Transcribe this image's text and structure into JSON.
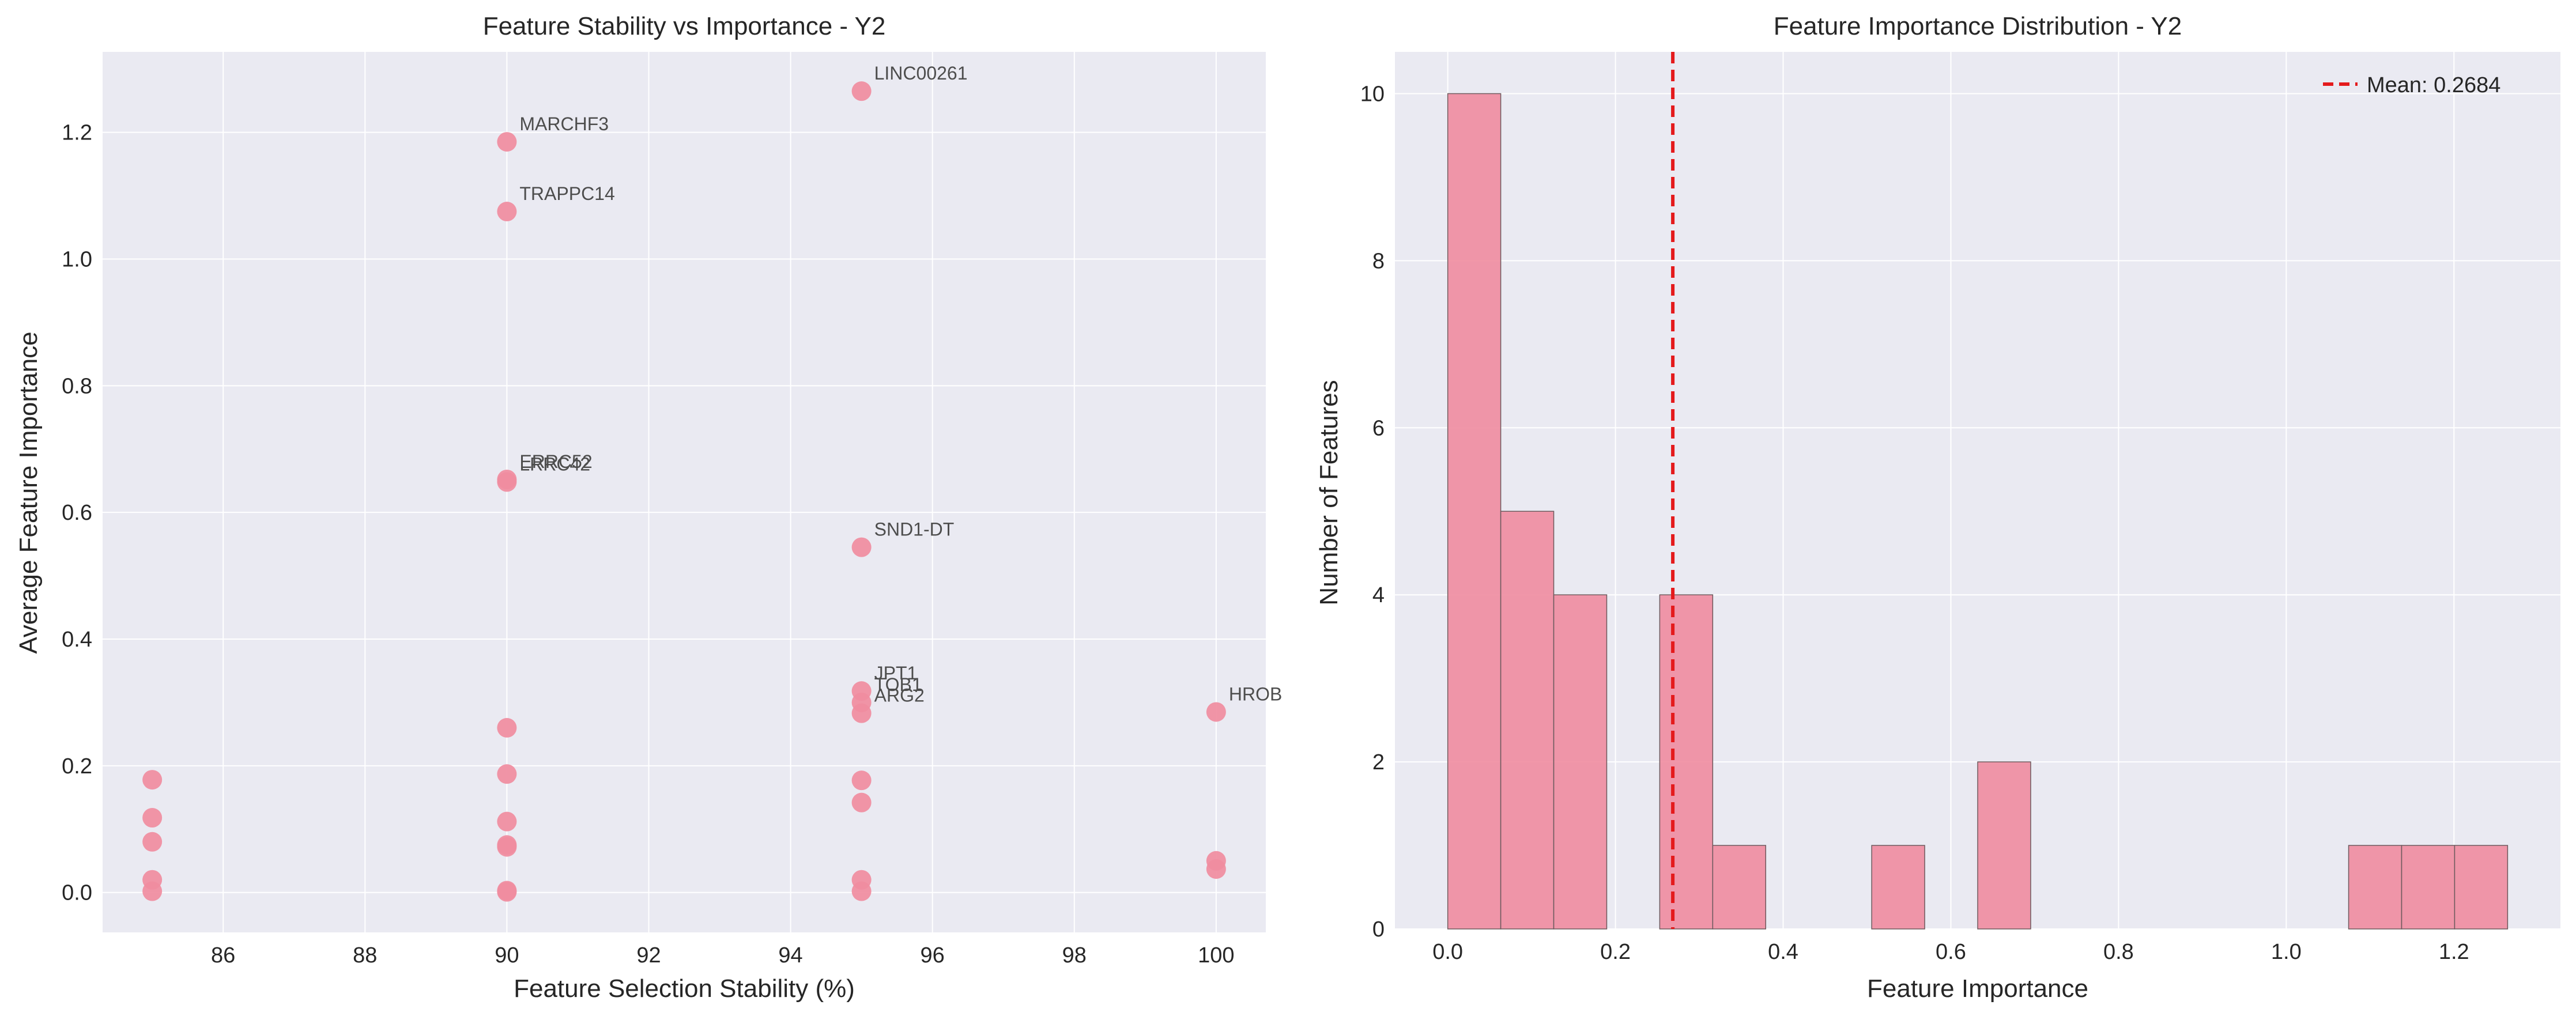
{
  "colors": {
    "axes_bg": "#eaeaf2",
    "grid": "#ffffff",
    "point": "#f08ca0",
    "bar": "#f08ca0",
    "bar_edge": "#6e5a5e",
    "mean_line": "#e41a1c",
    "text": "#262626",
    "annotation": "#4d4d4d"
  },
  "chart_data": [
    {
      "type": "scatter",
      "title": "Feature Stability vs Importance - Y2",
      "xlabel": "Feature Selection Stability (%)",
      "ylabel": "Average Feature Importance",
      "xlim": [
        84.3,
        100.7
      ],
      "ylim": [
        -0.063,
        1.327
      ],
      "xticks": [
        86,
        88,
        90,
        92,
        94,
        96,
        98,
        100
      ],
      "yticks": [
        0.0,
        0.2,
        0.4,
        0.6,
        0.8,
        1.0,
        1.2
      ],
      "xtick_labels": [
        "86",
        "88",
        "90",
        "92",
        "94",
        "96",
        "98",
        "100"
      ],
      "ytick_labels": [
        "0.0",
        "0.2",
        "0.4",
        "0.6",
        "0.8",
        "1.0",
        "1.2"
      ],
      "grid": true,
      "points": [
        {
          "x": 95,
          "y": 1.265,
          "label": "LINC00261"
        },
        {
          "x": 90,
          "y": 1.185,
          "label": "MARCHF3"
        },
        {
          "x": 90,
          "y": 1.075,
          "label": "TRAPPC14"
        },
        {
          "x": 90,
          "y": 0.652,
          "label": "ERRC52"
        },
        {
          "x": 90,
          "y": 0.648,
          "label": "LRRC42"
        },
        {
          "x": 95,
          "y": 0.545,
          "label": "SND1-DT"
        },
        {
          "x": 95,
          "y": 0.318,
          "label": "JPT1"
        },
        {
          "x": 95,
          "y": 0.3,
          "label": "TOB1"
        },
        {
          "x": 95,
          "y": 0.283,
          "label": "ARG2"
        },
        {
          "x": 100,
          "y": 0.285,
          "label": "HROB"
        },
        {
          "x": 85,
          "y": 0.178,
          "label": ""
        },
        {
          "x": 85,
          "y": 0.118,
          "label": ""
        },
        {
          "x": 85,
          "y": 0.08,
          "label": ""
        },
        {
          "x": 85,
          "y": 0.02,
          "label": ""
        },
        {
          "x": 85,
          "y": 0.002,
          "label": ""
        },
        {
          "x": 90,
          "y": 0.26,
          "label": ""
        },
        {
          "x": 90,
          "y": 0.187,
          "label": ""
        },
        {
          "x": 90,
          "y": 0.112,
          "label": ""
        },
        {
          "x": 90,
          "y": 0.075,
          "label": ""
        },
        {
          "x": 90,
          "y": 0.072,
          "label": ""
        },
        {
          "x": 90,
          "y": 0.003,
          "label": ""
        },
        {
          "x": 90,
          "y": 0.001,
          "label": ""
        },
        {
          "x": 95,
          "y": 0.177,
          "label": ""
        },
        {
          "x": 95,
          "y": 0.142,
          "label": ""
        },
        {
          "x": 95,
          "y": 0.02,
          "label": ""
        },
        {
          "x": 95,
          "y": 0.002,
          "label": ""
        },
        {
          "x": 100,
          "y": 0.05,
          "label": ""
        },
        {
          "x": 100,
          "y": 0.037,
          "label": ""
        }
      ]
    },
    {
      "type": "bar",
      "subtype": "histogram",
      "title": "Feature Importance Distribution - Y2",
      "xlabel": "Feature Importance",
      "ylabel": "Number of Features",
      "xlim": [
        -0.063,
        1.327
      ],
      "ylim": [
        0,
        10.5
      ],
      "xticks": [
        0.0,
        0.2,
        0.4,
        0.6,
        0.8,
        1.0,
        1.2
      ],
      "yticks": [
        0,
        2,
        4,
        6,
        8,
        10
      ],
      "xtick_labels": [
        "0.0",
        "0.2",
        "0.4",
        "0.6",
        "0.8",
        "1.0",
        "1.2"
      ],
      "ytick_labels": [
        "0",
        "2",
        "4",
        "6",
        "8",
        "10"
      ],
      "grid": true,
      "bin_start": 0.0,
      "bin_width": 0.0632,
      "counts": [
        10,
        5,
        4,
        0,
        4,
        1,
        0,
        0,
        1,
        0,
        2,
        0,
        0,
        0,
        0,
        0,
        0,
        1,
        1,
        1
      ],
      "mean_line": {
        "x": 0.2684,
        "label": "Mean: 0.2684"
      },
      "legend_position": "upper right"
    }
  ]
}
